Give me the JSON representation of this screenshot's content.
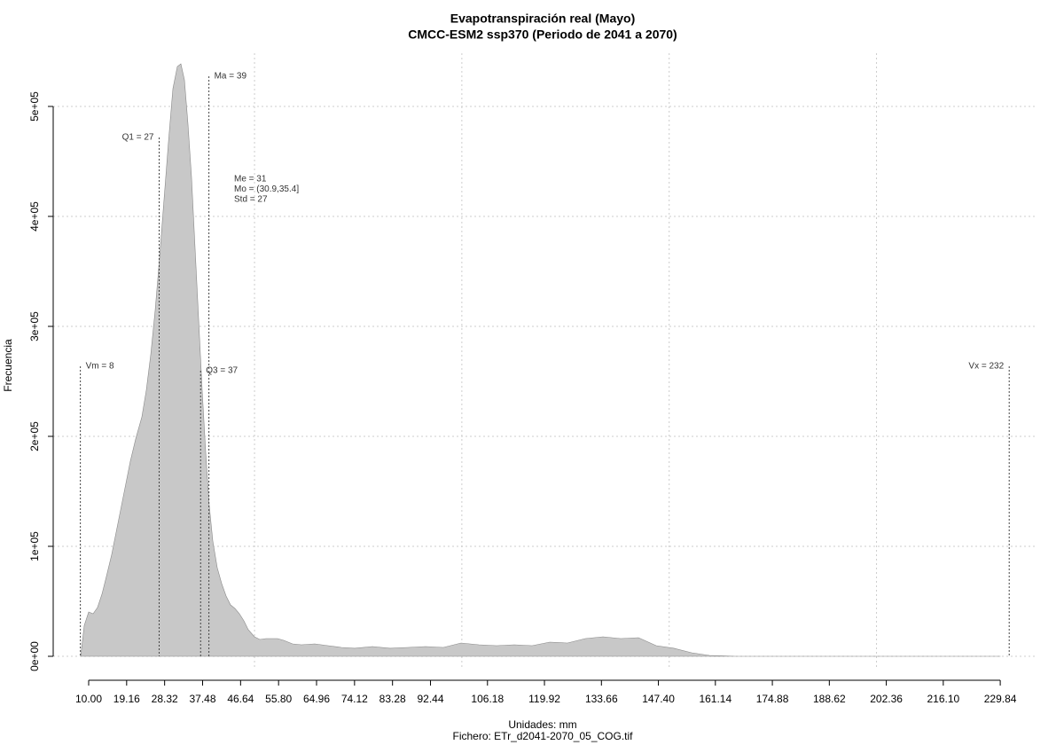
{
  "chart_data": {
    "type": "area",
    "title": "Evapotranspiración real (Mayo)",
    "subtitle": "CMCC-ESM2 ssp370 (Periodo de 2041 a 2070)",
    "x_label": "Unidades: mm",
    "footer": "Fichero: ETr_d2041-2070_05_COG.tif",
    "y_label": "Frecuencia",
    "color": "#c8c8c8",
    "line_color": "#888888",
    "xlim": [
      1.45,
      238.8
    ],
    "ylim": [
      -12100,
      548400
    ],
    "xticks": [
      {
        "value": 10,
        "label": "10.00"
      },
      {
        "value": 19.16,
        "label": "19.16"
      },
      {
        "value": 28.32,
        "label": "28.32"
      },
      {
        "value": 37.48,
        "label": "37.48"
      },
      {
        "value": 46.64,
        "label": "46.64"
      },
      {
        "value": 55.8,
        "label": "55.80"
      },
      {
        "value": 64.96,
        "label": "64.96"
      },
      {
        "value": 74.12,
        "label": "74.12"
      },
      {
        "value": 83.28,
        "label": "83.28"
      },
      {
        "value": 92.44,
        "label": "92.44"
      },
      {
        "value": 106.18,
        "label": "106.18"
      },
      {
        "value": 119.92,
        "label": "119.92"
      },
      {
        "value": 133.66,
        "label": "133.66"
      },
      {
        "value": 147.4,
        "label": "147.40"
      },
      {
        "value": 161.14,
        "label": "161.14"
      },
      {
        "value": 174.88,
        "label": "174.88"
      },
      {
        "value": 188.62,
        "label": "188.62"
      },
      {
        "value": 202.36,
        "label": "202.36"
      },
      {
        "value": 216.1,
        "label": "216.10"
      },
      {
        "value": 229.84,
        "label": "229.84"
      }
    ],
    "yticks": [
      {
        "value": 0,
        "label": "0e+00"
      },
      {
        "value": 100000,
        "label": "1e+05"
      },
      {
        "value": 200000,
        "label": "2e+05"
      },
      {
        "value": 300000,
        "label": "3e+05"
      },
      {
        "value": 400000,
        "label": "4e+05"
      },
      {
        "value": 500000,
        "label": "5e+05"
      }
    ],
    "xgrid": [
      50,
      100,
      150,
      200
    ],
    "grid": true,
    "x": [
      8.07,
      8.93,
      10,
      11.07,
      12.14,
      13.21,
      14.28,
      15.56,
      17.06,
      18.55,
      20.05,
      21.33,
      22.83,
      23.9,
      24.97,
      26.04,
      27.11,
      28.18,
      29.25,
      30.32,
      31.39,
      32.24,
      33.1,
      33.95,
      34.81,
      35.66,
      36.52,
      37.37,
      38.23,
      39.08,
      39.94,
      41.01,
      42.08,
      43.15,
      44.22,
      45.29,
      46.36,
      47.43,
      48.49,
      49.99,
      51.27,
      52.77,
      55.55,
      57.05,
      59.19,
      61.33,
      64.53,
      67.74,
      70.95,
      74.16,
      78.43,
      82.71,
      86.99,
      91.27,
      95.54,
      99.82,
      104.1,
      108.38,
      112.65,
      116.93,
      121.21,
      125.48,
      129.76,
      134.04,
      138.32,
      142.59,
      146.87,
      151.15,
      155.42,
      159.7,
      166.12,
      181.09,
      202.48,
      229.84
    ],
    "y": [
      0,
      28000,
      40300,
      38700,
      44400,
      56500,
      72600,
      92700,
      121000,
      149200,
      177400,
      197600,
      217700,
      241900,
      274200,
      314500,
      362900,
      415300,
      467700,
      516100,
      536300,
      538700,
      524200,
      483900,
      435500,
      371000,
      306500,
      241900,
      185500,
      137100,
      104800,
      80600,
      66100,
      54800,
      46800,
      43500,
      38700,
      32300,
      24200,
      17700,
      15300,
      16100,
      16100,
      14500,
      11300,
      10500,
      11300,
      9700,
      8100,
      7300,
      8900,
      7300,
      8100,
      8900,
      8100,
      12100,
      10500,
      9700,
      10500,
      9700,
      12900,
      12100,
      16100,
      17700,
      16100,
      16900,
      9700,
      7300,
      3200,
      800,
      0,
      0,
      0,
      0
    ],
    "vlines": [
      {
        "label": "Vm = 8",
        "value": 8
      },
      {
        "label": "Q1 = 27",
        "value": 27
      },
      {
        "label": "Q3 = 37",
        "value": 37
      },
      {
        "label": "Ma = 39",
        "value": 39
      },
      {
        "label": "Vx = 232",
        "value": 232
      }
    ],
    "stats": [
      "Me = 31",
      "Mo = (30.9,35.4]",
      "Std = 27"
    ]
  }
}
